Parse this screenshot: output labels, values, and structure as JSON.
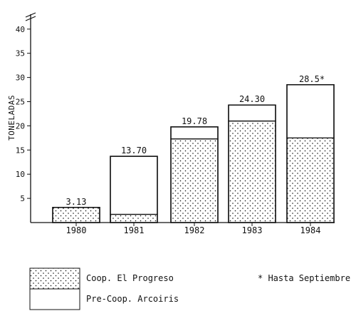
{
  "chart_data": {
    "type": "bar",
    "stacked": true,
    "categories": [
      "1980",
      "1981",
      "1982",
      "1983",
      "1984"
    ],
    "series": [
      {
        "name": "Coop. El Progreso",
        "pattern": "dotted",
        "values": [
          3.13,
          1.7,
          17.3,
          21.0,
          17.5
        ]
      },
      {
        "name": "Pre-Coop. Arcoiris",
        "pattern": "blank",
        "values": [
          0,
          12.0,
          2.48,
          3.3,
          11.0
        ]
      }
    ],
    "totals": [
      3.13,
      13.7,
      19.78,
      24.3,
      28.5
    ],
    "total_labels": [
      "3.13",
      "13.70",
      "19.78",
      "24.30",
      "28.5*"
    ],
    "ylabel": "TONELADAS",
    "yticks": [
      "5",
      "10",
      "15",
      "20",
      "25",
      "30",
      "35",
      "40"
    ],
    "ylim": [
      0,
      42
    ],
    "axis_break": true,
    "grid": false,
    "legend_position": "bottom-left",
    "footnote": "* Hasta Septiembre",
    "colors": {
      "ink": "#111111",
      "paper": "#ffffff"
    }
  }
}
